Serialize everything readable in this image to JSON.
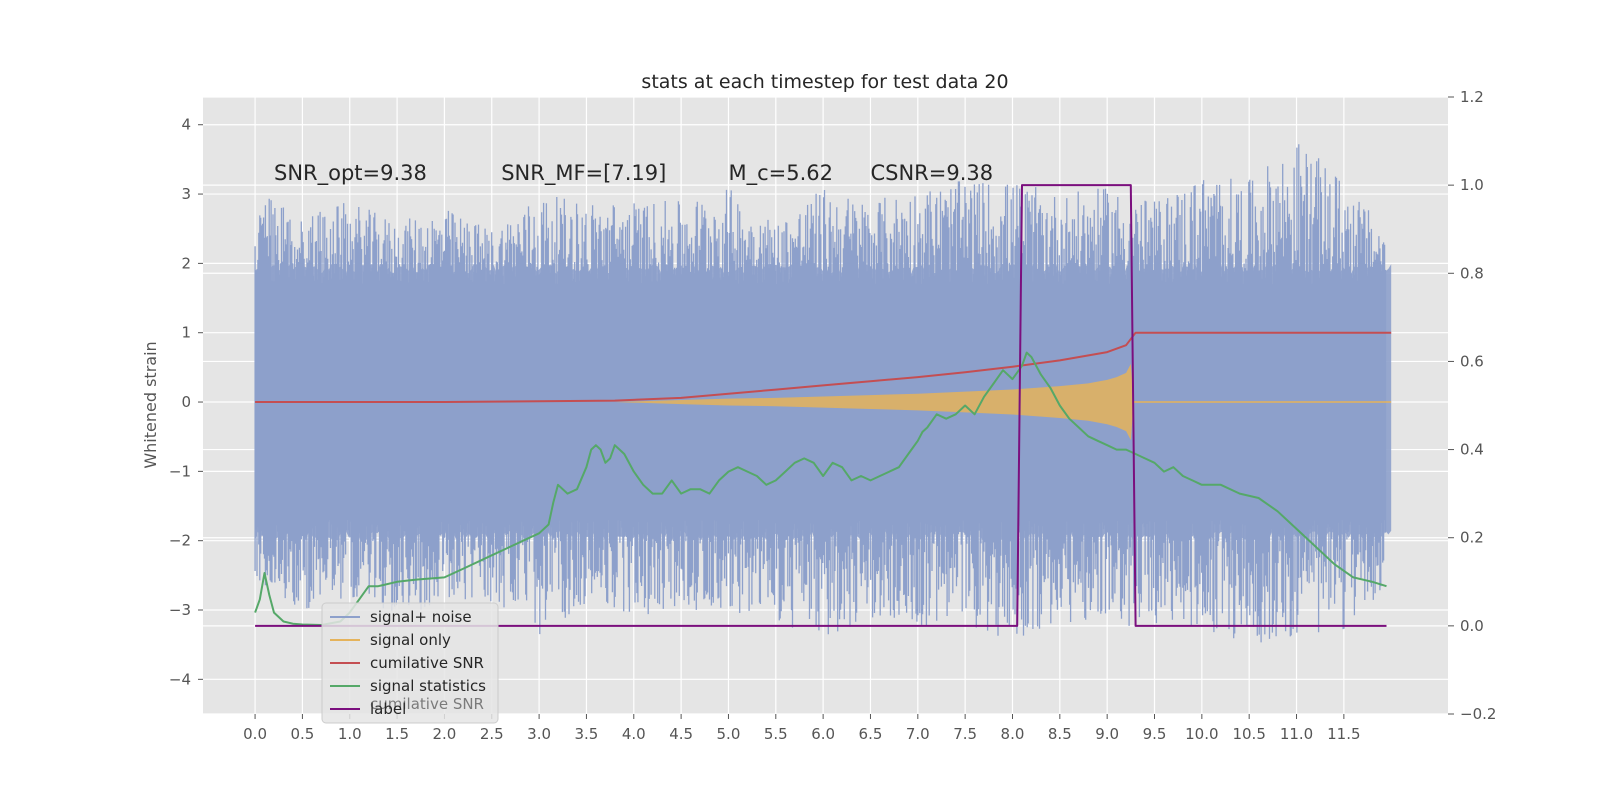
{
  "chart_data": {
    "type": "line",
    "title": "stats at each timestep for test data 20",
    "xlabel": "",
    "ylabel": "Whitened strain",
    "y2label": "",
    "xlim": [
      -0.55,
      12.6
    ],
    "ylim": [
      -4.5,
      4.4
    ],
    "y2lim": [
      -0.2,
      1.2
    ],
    "x_ticks": [
      0.0,
      0.5,
      1.0,
      1.5,
      2.0,
      2.5,
      3.0,
      3.5,
      4.0,
      4.5,
      5.0,
      5.5,
      6.0,
      6.5,
      7.0,
      7.5,
      8.0,
      8.5,
      9.0,
      9.5,
      10.0,
      10.5,
      11.0,
      11.5
    ],
    "x_tick_labels": [
      "0.0",
      "0.5",
      "1.0",
      "1.5",
      "2.0",
      "2.5",
      "3.0",
      "3.5",
      "4.0",
      "4.5",
      "5.0",
      "5.5",
      "6.0",
      "6.5",
      "7.0",
      "7.5",
      "8.0",
      "8.5",
      "9.0",
      "9.5",
      "10.0",
      "10.5",
      "11.0",
      "11.5"
    ],
    "y_ticks": [
      4,
      3,
      2,
      1,
      0,
      -1,
      -2,
      -3,
      -4
    ],
    "y_tick_labels": [
      "4",
      "3",
      "2",
      "1",
      "0",
      "−1",
      "−2",
      "−3",
      "−4"
    ],
    "y2_ticks": [
      1.2,
      1.0,
      0.8,
      0.6,
      0.4,
      0.2,
      0.0,
      -0.2
    ],
    "y2_tick_labels": [
      "1.2",
      "1.0",
      "0.8",
      "0.6",
      "0.4",
      "0.2",
      "0.0",
      "−0.2"
    ],
    "grid": true,
    "legend_position": "lower-left",
    "annotations": [
      {
        "text": "SNR_opt=9.38",
        "x": 0.2,
        "y": 3.2
      },
      {
        "text": "SNR_MF=[7.19]",
        "x": 2.6,
        "y": 3.2
      },
      {
        "text": "M_c=5.62",
        "x": 5.0,
        "y": 3.2
      },
      {
        "text": "CSNR=9.38",
        "x": 6.5,
        "y": 3.2
      }
    ],
    "series": [
      {
        "name": "signal+ noise",
        "axis": "left",
        "color": "#8da0cb",
        "envelope": true,
        "x": [
          0.0,
          0.5,
          1.0,
          1.5,
          2.0,
          2.5,
          3.0,
          3.5,
          4.0,
          4.5,
          5.0,
          5.5,
          6.0,
          6.5,
          7.0,
          7.5,
          8.0,
          8.5,
          9.0,
          9.5,
          10.0,
          10.5,
          11.0,
          11.5,
          12.0
        ],
        "upper": [
          3.1,
          2.7,
          2.9,
          2.6,
          2.8,
          2.5,
          3.0,
          2.9,
          2.9,
          2.9,
          3.1,
          2.6,
          3.1,
          2.9,
          3.1,
          3.2,
          3.2,
          3.0,
          3.1,
          2.9,
          3.3,
          3.2,
          3.8,
          3.2,
          2.4
        ],
        "lower": [
          -2.6,
          -3.0,
          -2.8,
          -3.1,
          -2.9,
          -2.9,
          -3.4,
          -2.9,
          -3.1,
          -3.0,
          -3.0,
          -3.2,
          -3.5,
          -3.1,
          -3.3,
          -3.2,
          -3.5,
          -3.2,
          -3.2,
          -3.3,
          -3.3,
          -3.5,
          -3.4,
          -3.3,
          -2.6
        ]
      },
      {
        "name": "signal only",
        "axis": "left",
        "color": "#e5b35b",
        "envelope": true,
        "x": [
          0.0,
          3.8,
          4.5,
          5.0,
          5.5,
          6.0,
          6.5,
          7.0,
          7.5,
          8.0,
          8.5,
          8.8,
          9.0,
          9.1,
          9.2,
          9.25,
          9.28,
          12.0
        ],
        "upper": [
          0.0,
          0.0,
          0.03,
          0.05,
          0.06,
          0.08,
          0.1,
          0.12,
          0.15,
          0.18,
          0.23,
          0.27,
          0.32,
          0.36,
          0.42,
          0.55,
          0.0,
          0.0
        ],
        "lower": [
          0.0,
          0.0,
          -0.03,
          -0.05,
          -0.06,
          -0.08,
          -0.1,
          -0.12,
          -0.15,
          -0.18,
          -0.23,
          -0.27,
          -0.32,
          -0.36,
          -0.42,
          -0.55,
          0.0,
          0.0
        ]
      },
      {
        "name": "cumilative SNR",
        "axis": "left",
        "color": "#c44e52",
        "x": [
          0.0,
          1.0,
          2.0,
          3.0,
          3.8,
          4.5,
          5.0,
          5.5,
          6.0,
          6.5,
          7.0,
          7.5,
          8.0,
          8.5,
          9.0,
          9.2,
          9.3,
          12.0
        ],
        "y": [
          0.0,
          0.0,
          0.0,
          0.01,
          0.02,
          0.06,
          0.12,
          0.18,
          0.24,
          0.3,
          0.36,
          0.43,
          0.51,
          0.6,
          0.72,
          0.82,
          1.0,
          1.0
        ]
      },
      {
        "name": "signal statistics",
        "axis": "right",
        "color": "#55a868",
        "x": [
          0.0,
          0.05,
          0.1,
          0.15,
          0.2,
          0.25,
          0.3,
          0.4,
          0.5,
          0.7,
          0.9,
          1.0,
          1.1,
          1.2,
          1.3,
          1.5,
          1.7,
          2.0,
          2.2,
          2.5,
          2.7,
          2.9,
          3.0,
          3.1,
          3.15,
          3.2,
          3.3,
          3.4,
          3.5,
          3.55,
          3.6,
          3.65,
          3.7,
          3.75,
          3.8,
          3.85,
          3.9,
          4.0,
          4.1,
          4.2,
          4.3,
          4.4,
          4.5,
          4.6,
          4.7,
          4.8,
          4.9,
          5.0,
          5.1,
          5.2,
          5.3,
          5.4,
          5.5,
          5.6,
          5.7,
          5.8,
          5.9,
          6.0,
          6.1,
          6.2,
          6.3,
          6.4,
          6.5,
          6.6,
          6.7,
          6.8,
          6.9,
          7.0,
          7.05,
          7.1,
          7.2,
          7.3,
          7.4,
          7.5,
          7.6,
          7.7,
          7.8,
          7.9,
          8.0,
          8.1,
          8.15,
          8.2,
          8.3,
          8.4,
          8.5,
          8.6,
          8.7,
          8.8,
          8.9,
          9.0,
          9.1,
          9.2,
          9.3,
          9.4,
          9.5,
          9.6,
          9.7,
          9.8,
          9.9,
          10.0,
          10.2,
          10.4,
          10.6,
          10.8,
          11.0,
          11.2,
          11.4,
          11.6,
          11.8,
          11.95
        ],
        "y": [
          0.03,
          0.06,
          0.12,
          0.07,
          0.03,
          0.02,
          0.01,
          0.005,
          0.003,
          0.002,
          0.01,
          0.03,
          0.06,
          0.09,
          0.09,
          0.1,
          0.105,
          0.11,
          0.13,
          0.16,
          0.18,
          0.2,
          0.21,
          0.23,
          0.28,
          0.32,
          0.3,
          0.31,
          0.36,
          0.4,
          0.41,
          0.4,
          0.37,
          0.38,
          0.41,
          0.4,
          0.39,
          0.35,
          0.32,
          0.3,
          0.3,
          0.33,
          0.3,
          0.31,
          0.31,
          0.3,
          0.33,
          0.35,
          0.36,
          0.35,
          0.34,
          0.32,
          0.33,
          0.35,
          0.37,
          0.38,
          0.37,
          0.34,
          0.37,
          0.36,
          0.33,
          0.34,
          0.33,
          0.34,
          0.35,
          0.36,
          0.39,
          0.42,
          0.44,
          0.45,
          0.48,
          0.47,
          0.48,
          0.5,
          0.48,
          0.52,
          0.55,
          0.58,
          0.56,
          0.59,
          0.62,
          0.61,
          0.57,
          0.54,
          0.5,
          0.47,
          0.45,
          0.43,
          0.42,
          0.41,
          0.4,
          0.4,
          0.39,
          0.38,
          0.37,
          0.35,
          0.36,
          0.34,
          0.33,
          0.32,
          0.32,
          0.3,
          0.29,
          0.26,
          0.22,
          0.18,
          0.14,
          0.11,
          0.1,
          0.09
        ]
      },
      {
        "name": "label",
        "axis": "right",
        "color": "#7b0f7e",
        "x": [
          0.0,
          8.05,
          8.1,
          9.25,
          9.3,
          11.95
        ],
        "y": [
          0.0,
          0.0,
          1.0,
          1.0,
          0.0,
          0.0
        ]
      }
    ]
  },
  "legend": {
    "items": [
      {
        "label": "signal+ noise",
        "color": "#8da0cb"
      },
      {
        "label": "signal only",
        "color": "#e5b35b"
      },
      {
        "label": "cumilative SNR",
        "color": "#c44e52"
      },
      {
        "label": "signal statistics",
        "color": "#55a868"
      },
      {
        "label": "label",
        "color": "#7b0f7e"
      }
    ],
    "ghost_text": "cumilative SNR"
  }
}
